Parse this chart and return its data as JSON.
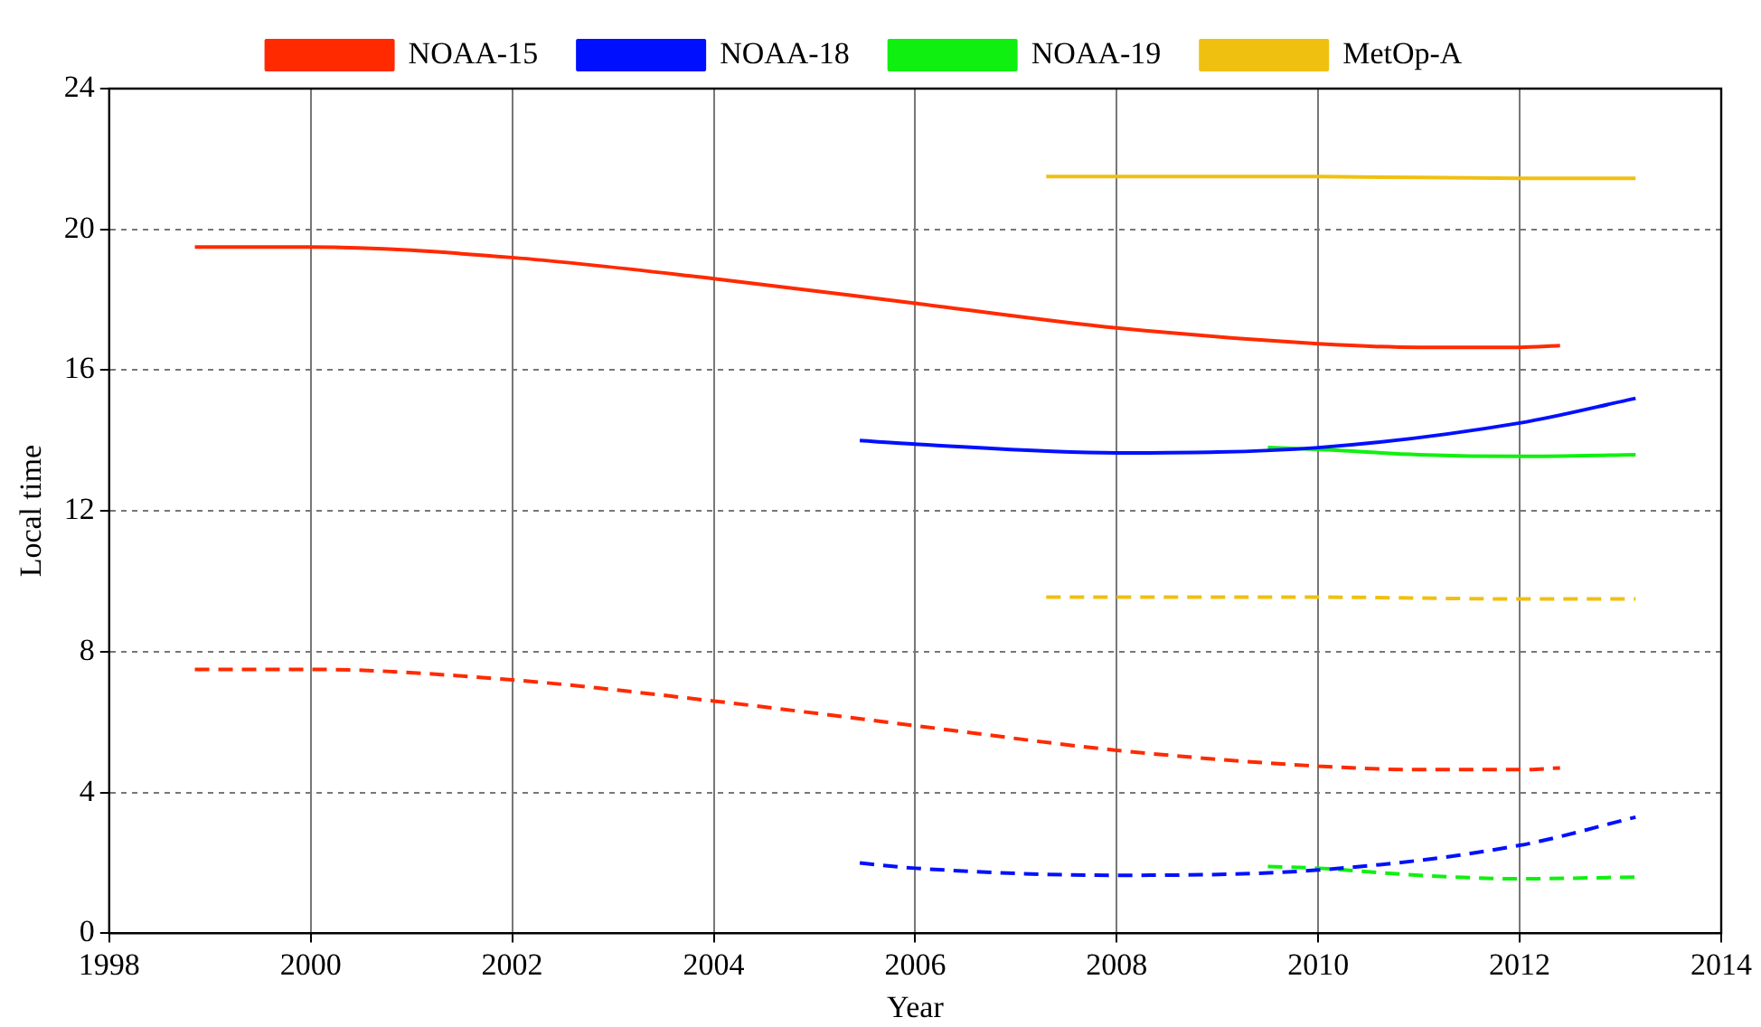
{
  "chart_data": {
    "type": "line",
    "xlabel": "Year",
    "ylabel": "Local time",
    "xlim": [
      1998,
      2014
    ],
    "xticks": [
      1998,
      2000,
      2002,
      2004,
      2006,
      2008,
      2010,
      2012,
      2014
    ],
    "ylim": [
      0,
      24
    ],
    "yticks": [
      0,
      4,
      8,
      12,
      16,
      20,
      24
    ],
    "grid": true,
    "legend": "top",
    "marker": "none",
    "series": [
      {
        "name": "NOAA-15",
        "color": "#ff2a00",
        "line_style": "solid",
        "x": [
          1998.85,
          2000,
          2002,
          2004,
          2006,
          2008,
          2010,
          2011,
          2012,
          2012.4
        ],
        "values": [
          19.5,
          19.5,
          19.2,
          18.6,
          17.9,
          17.2,
          16.75,
          16.65,
          16.65,
          16.7
        ]
      },
      {
        "name": "NOAA-18",
        "color": "#0010ff",
        "line_style": "solid",
        "x": [
          2005.45,
          2006,
          2008,
          2010,
          2012,
          2013.15
        ],
        "values": [
          14.0,
          13.9,
          13.65,
          13.8,
          14.5,
          15.2
        ]
      },
      {
        "name": "NOAA-19",
        "color": "#10f010",
        "line_style": "solid",
        "x": [
          2009.5,
          2010,
          2011,
          2012,
          2013.15
        ],
        "values": [
          13.8,
          13.75,
          13.6,
          13.55,
          13.6
        ]
      },
      {
        "name": "MetOp-A",
        "color": "#f0c010",
        "line_style": "solid",
        "x": [
          2007.3,
          2010,
          2012,
          2013.15
        ],
        "values": [
          21.5,
          21.5,
          21.45,
          21.45
        ]
      },
      {
        "color": "#ff2a00",
        "line_style": "dashed",
        "x": [
          1998.85,
          2000,
          2002,
          2004,
          2006,
          2008,
          2010,
          2011,
          2012,
          2012.4
        ],
        "values": [
          7.5,
          7.5,
          7.2,
          6.6,
          5.9,
          5.2,
          4.75,
          4.65,
          4.65,
          4.7
        ]
      },
      {
        "color": "#0010ff",
        "line_style": "dashed",
        "x": [
          2005.45,
          2006,
          2008,
          2010,
          2012,
          2013.15
        ],
        "values": [
          2.0,
          1.85,
          1.65,
          1.8,
          2.5,
          3.3
        ]
      },
      {
        "color": "#10f010",
        "line_style": "dashed",
        "x": [
          2009.5,
          2010,
          2011,
          2012,
          2013.15
        ],
        "values": [
          1.9,
          1.85,
          1.65,
          1.55,
          1.6
        ]
      },
      {
        "color": "#f0c010",
        "line_style": "dashed",
        "x": [
          2007.3,
          2010,
          2012,
          2013.15
        ],
        "values": [
          9.55,
          9.55,
          9.5,
          9.5
        ]
      }
    ]
  }
}
